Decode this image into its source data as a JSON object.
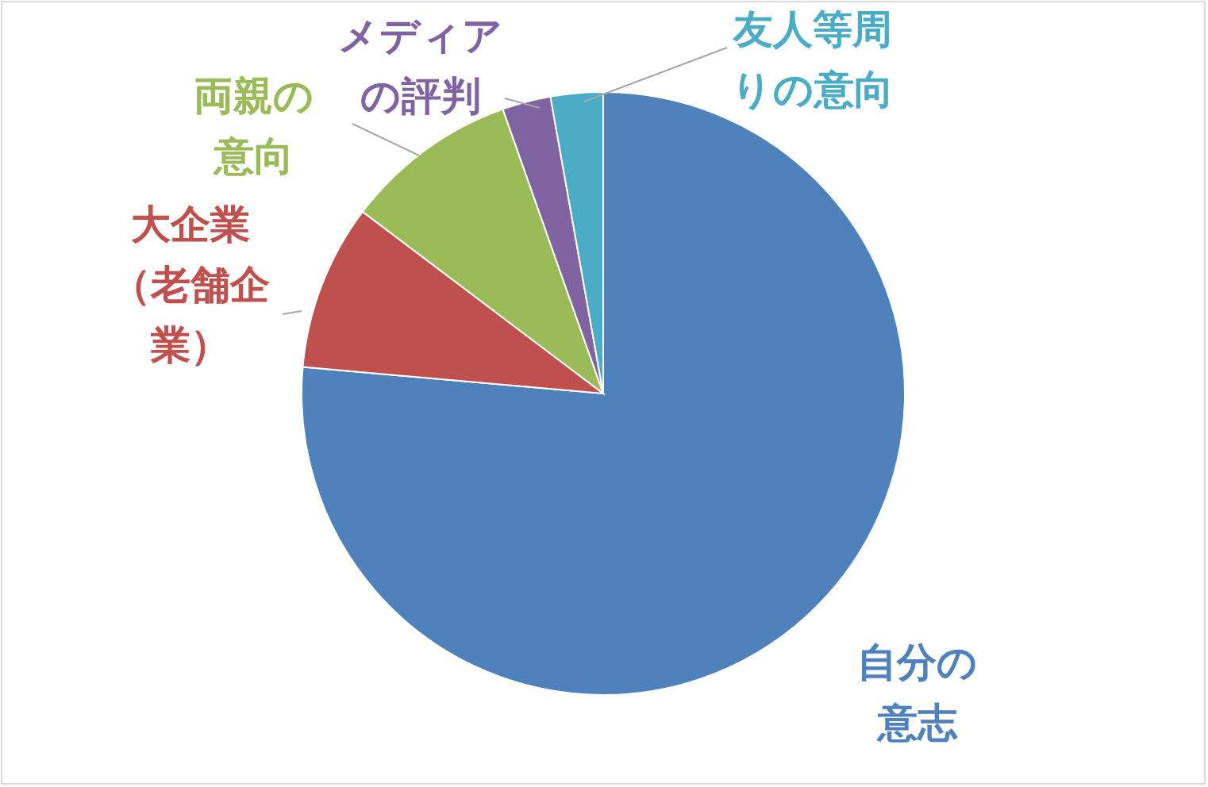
{
  "chart_data": {
    "type": "pie",
    "categories": [
      "自分の意志",
      "大企業（老舗企業）",
      "両親の意向",
      "メディアの評判",
      "友人等周りの意向"
    ],
    "values": [
      76.4,
      8.9,
      9.3,
      2.6,
      2.8
    ],
    "colors": [
      "#4f81bd",
      "#c0504d",
      "#9bbb59",
      "#8064a2",
      "#4bacc6"
    ],
    "legend": false
  }
}
